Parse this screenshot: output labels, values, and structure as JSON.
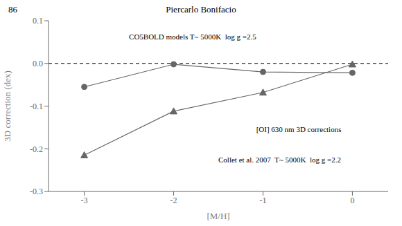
{
  "chart_data": {
    "type": "line",
    "title": "Piercarlo Bonifacio",
    "page_number": "86",
    "x": [
      -3,
      -2,
      -1,
      0
    ],
    "series": [
      {
        "color": "#666666",
        "marker": "circle",
        "values": [
          -0.055,
          -0.002,
          -0.02,
          -0.022
        ]
      },
      {
        "color": "#666666",
        "marker": "triangle",
        "values": [
          -0.215,
          -0.112,
          -0.068,
          -0.002
        ]
      }
    ],
    "xlim": [
      -3.4,
      0.4
    ],
    "ylim": [
      -0.3,
      0.1
    ],
    "xticks": [
      -3,
      -2,
      -1,
      0
    ],
    "yticks": [
      -0.3,
      -0.2,
      -0.1,
      {
        "value": 0,
        "label": "0.0"
      },
      0.1
    ],
    "xlabel": "[M/H]",
    "ylabel": "3D correction (dex)",
    "annotations": [
      "CO5BOLD models T~ 5000K  log g =2.5",
      "[OI] 630 nm 3D corrections",
      "Collet et al. 2007  T~ 5000K  log g =2.2"
    ],
    "reference_line": {
      "y": 0,
      "line_style": "dashed"
    }
  }
}
